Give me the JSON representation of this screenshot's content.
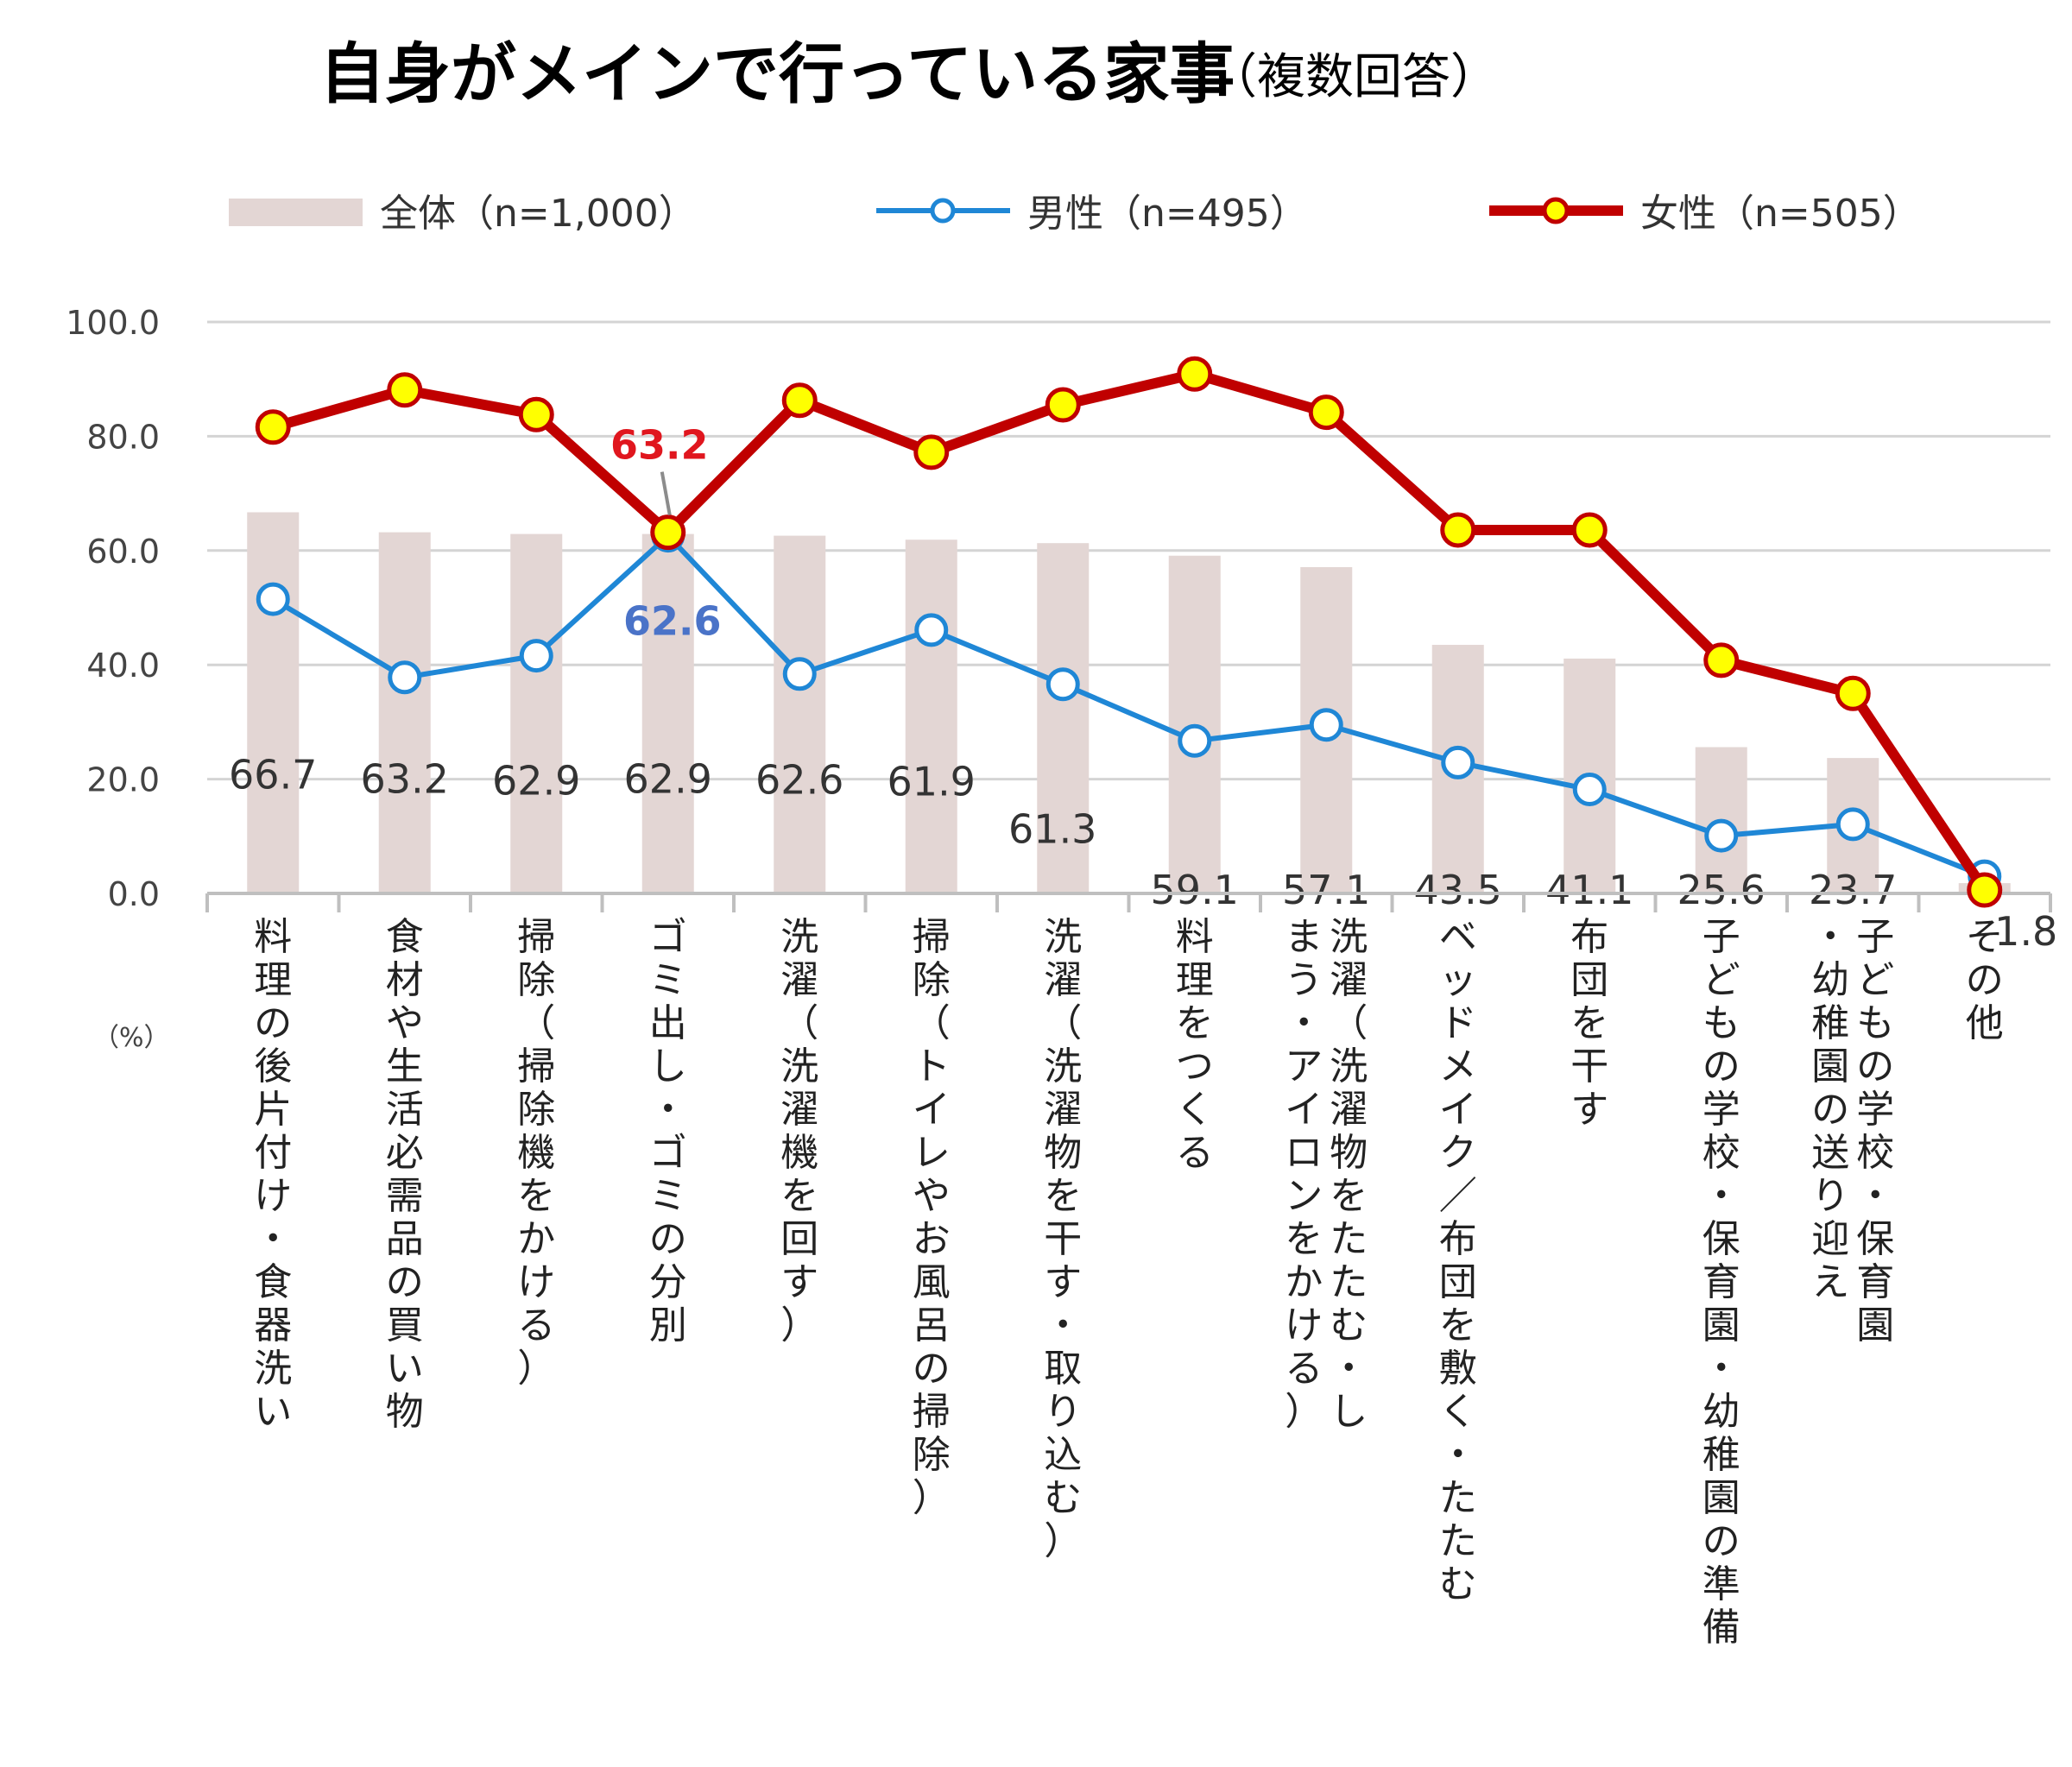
{
  "title": "自身がメインで行っている家事",
  "subtitle": "（複数回答）",
  "unit_label": "（%）",
  "colors": {
    "total": "#e3d6d4",
    "male": "#1f87d6",
    "female": "#c00000",
    "female_marker": "#ffff00"
  },
  "chart_data": {
    "type": "bar",
    "categories": [
      "料理の後片付け・食器洗い",
      "食材や生活必需品の買い物",
      "掃除（掃除機をかける）",
      "ゴミ出し・ゴミの分別",
      "洗濯（洗濯機を回す）",
      "掃除（トイレやお風呂の掃除）",
      "洗濯（洗濯物を干す・取り込む）",
      "料理をつくる",
      "洗濯（洗濯物をたたむ・しまう・アイロンをかける）",
      "ベッドメイク／布団を敷く・たたむ",
      "布団を干す",
      "子どもの学校・保育園・幼稚園の準備",
      "子どもの学校・保育園・幼稚園の送り迎え",
      "その他"
    ],
    "series": [
      {
        "name": "全体（n=1,000）",
        "type": "bar",
        "values": [
          66.7,
          63.2,
          62.9,
          62.9,
          62.6,
          61.9,
          61.3,
          59.1,
          57.1,
          43.5,
          41.1,
          25.6,
          23.7,
          1.8
        ],
        "labels": [
          "66.7",
          "63.2",
          "62.9",
          "62.9",
          "62.6",
          "61.9",
          "61.3",
          "59.1",
          "57.1",
          "43.5",
          "41.1",
          "25.6",
          "23.7",
          "1.8"
        ]
      },
      {
        "name": "男性（n=495）",
        "type": "line",
        "values": [
          51.5,
          37.8,
          41.6,
          62.6,
          38.4,
          46.1,
          36.6,
          26.7,
          29.5,
          22.9,
          18.2,
          10.1,
          12.1,
          3.0
        ]
      },
      {
        "name": "女性（n=505）",
        "type": "line",
        "values": [
          81.6,
          88.1,
          83.8,
          63.2,
          86.3,
          77.2,
          85.5,
          90.9,
          84.2,
          63.6,
          63.6,
          40.8,
          35.0,
          0.6
        ]
      }
    ],
    "callouts": {
      "female": "63.2",
      "male": "62.6",
      "index": 3
    },
    "yaxis": {
      "min": 0,
      "max": 100,
      "ticks": [
        "0.0",
        "20.0",
        "40.0",
        "60.0",
        "80.0",
        "100.0"
      ]
    },
    "grid": true,
    "legend": "top"
  }
}
